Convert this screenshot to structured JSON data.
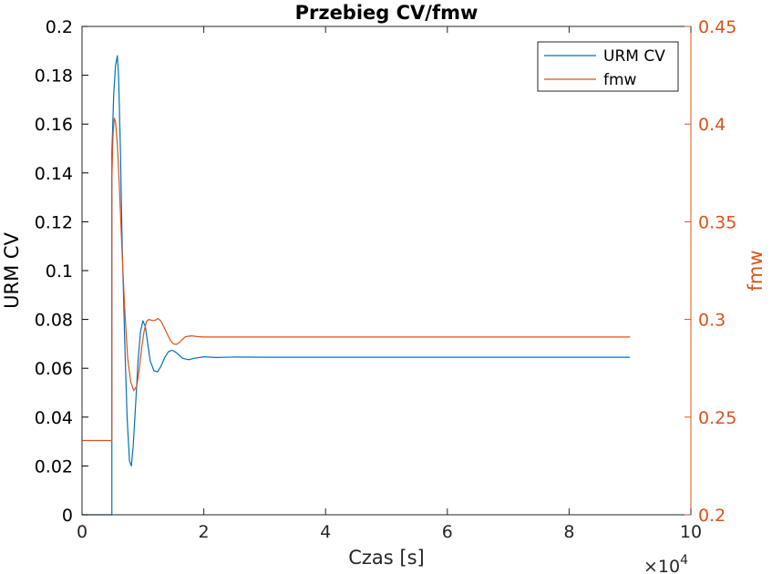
{
  "colors": {
    "left_axis": "#000000",
    "right_axis": "#d95319",
    "series_cv": "#0072bd",
    "series_fmw": "#d95319",
    "box": "#262626",
    "background": "#ffffff"
  },
  "chart_data": {
    "type": "line",
    "title": "Przebieg CV/fmw",
    "xlabel": "Czas [s]",
    "x_exponent_label": "×10",
    "x_exponent_power": "4",
    "ylabel": "URM CV",
    "y2label": "fmw",
    "xlim": [
      0,
      100000
    ],
    "ylim": [
      0,
      0.2
    ],
    "y2lim": [
      0.2,
      0.45
    ],
    "x_ticks": [
      0,
      20000,
      40000,
      60000,
      80000,
      100000
    ],
    "x_tick_labels": [
      "0",
      "2",
      "4",
      "6",
      "8",
      "10"
    ],
    "y_ticks": [
      0,
      0.02,
      0.04,
      0.06,
      0.08,
      0.1,
      0.12,
      0.14,
      0.16,
      0.18,
      0.2
    ],
    "y_tick_labels": [
      "0",
      "0.02",
      "0.04",
      "0.06",
      "0.08",
      "0.1",
      "0.12",
      "0.14",
      "0.16",
      "0.18",
      "0.2"
    ],
    "y2_ticks": [
      0.2,
      0.25,
      0.3,
      0.35,
      0.4,
      0.45
    ],
    "y2_tick_labels": [
      "0.2",
      "0.25",
      "0.3",
      "0.35",
      "0.4",
      "0.45"
    ],
    "grid": false,
    "legend_position": "top-right",
    "series": [
      {
        "name": "URM CV",
        "axis": "left",
        "x": [
          0,
          4900,
          4900,
          5200,
          5500,
          5800,
          6000,
          6300,
          6600,
          7000,
          7400,
          7800,
          8100,
          8400,
          8800,
          9200,
          9600,
          10000,
          10400,
          10800,
          11200,
          11800,
          12400,
          13000,
          13600,
          14200,
          14800,
          15500,
          16500,
          17500,
          18500,
          20000,
          22000,
          25000,
          30000,
          40000,
          60000,
          90000
        ],
        "y": [
          0,
          0,
          0.148,
          0.172,
          0.184,
          0.188,
          0.18,
          0.15,
          0.11,
          0.072,
          0.04,
          0.022,
          0.02,
          0.028,
          0.045,
          0.063,
          0.075,
          0.0795,
          0.077,
          0.07,
          0.063,
          0.059,
          0.0585,
          0.061,
          0.0645,
          0.0668,
          0.0674,
          0.0664,
          0.0641,
          0.0635,
          0.0641,
          0.0647,
          0.0644,
          0.0646,
          0.0645,
          0.0645,
          0.0645,
          0.0645
        ]
      },
      {
        "name": "fmw",
        "axis": "right",
        "x": [
          0,
          4900,
          4900,
          5100,
          5300,
          5500,
          5800,
          6100,
          6500,
          7000,
          7500,
          8000,
          8500,
          9000,
          9400,
          9800,
          10200,
          10600,
          11000,
          11500,
          12000,
          12500,
          13000,
          13500,
          14000,
          14500,
          15000,
          15500,
          16000,
          16500,
          17000,
          18000,
          19000,
          20000,
          30000,
          90000
        ],
        "y": [
          0.238,
          0.238,
          0.372,
          0.395,
          0.403,
          0.401,
          0.39,
          0.37,
          0.34,
          0.306,
          0.28,
          0.268,
          0.2635,
          0.266,
          0.2745,
          0.2855,
          0.294,
          0.299,
          0.3,
          0.2995,
          0.2995,
          0.3005,
          0.299,
          0.2958,
          0.2925,
          0.2894,
          0.2875,
          0.2872,
          0.2882,
          0.2898,
          0.2912,
          0.2916,
          0.2912,
          0.291,
          0.291,
          0.291
        ]
      }
    ]
  }
}
